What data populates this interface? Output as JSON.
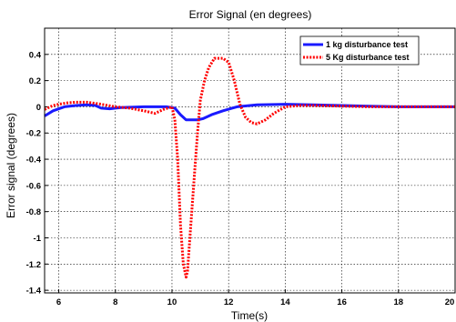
{
  "chart_data": {
    "type": "line",
    "title": "Error Signal (en degrees)",
    "xlabel": "Time(s)",
    "ylabel": "Error signal (degrees)",
    "xlim": [
      5.5,
      20
    ],
    "ylim": [
      -1.42,
      0.6
    ],
    "xticks": [
      6,
      8,
      10,
      12,
      14,
      16,
      18,
      20
    ],
    "xtick_labels": [
      "6",
      "8",
      "10",
      "12",
      "14",
      "16",
      "18",
      "20"
    ],
    "yticks": [
      0.4,
      0.2,
      0,
      -0.2,
      -0.4,
      -0.6,
      -0.8,
      -1,
      -1.2,
      -1.4
    ],
    "ytick_labels": [
      "0.4",
      "0.2",
      "0",
      "-0.2",
      "-0.4",
      "-0.6",
      "-0.8",
      "-1",
      "-1.2",
      "-1.4"
    ],
    "grid": true,
    "legend_position": "top-right",
    "series": [
      {
        "name": "1 kg disturbance test",
        "color": "#1a1aff",
        "style": "solid",
        "x": [
          5.5,
          5.8,
          6.2,
          6.6,
          7.0,
          7.3,
          7.5,
          7.8,
          8.2,
          9.0,
          9.8,
          10.1,
          10.3,
          10.5,
          10.7,
          10.9,
          11.1,
          11.4,
          11.8,
          12.3,
          13.0,
          14.0,
          15.0,
          16.0,
          17.0,
          18.0,
          19.0,
          20.0
        ],
        "y": [
          -0.07,
          -0.03,
          0.0,
          0.01,
          0.015,
          0.01,
          -0.01,
          -0.015,
          -0.005,
          0.0,
          0.0,
          -0.01,
          -0.06,
          -0.1,
          -0.1,
          -0.1,
          -0.09,
          -0.06,
          -0.03,
          0.0,
          0.015,
          0.02,
          0.015,
          0.01,
          0.005,
          0.0,
          0.0,
          0.0
        ]
      },
      {
        "name": "5 Kg disturbance test",
        "color": "#ff0000",
        "style": "dotted",
        "x": [
          5.5,
          5.8,
          6.0,
          6.3,
          6.6,
          7.0,
          7.5,
          8.0,
          8.5,
          9.0,
          9.4,
          9.7,
          10.0,
          10.1,
          10.2,
          10.3,
          10.4,
          10.5,
          10.55,
          10.6,
          10.7,
          10.8,
          10.9,
          11.0,
          11.15,
          11.3,
          11.5,
          11.8,
          12.0,
          12.2,
          12.4,
          12.6,
          12.8,
          13.0,
          13.3,
          13.6,
          14.0,
          14.5,
          15.0,
          16.0,
          17.0,
          18.0,
          19.0,
          20.0
        ],
        "y": [
          -0.02,
          0.01,
          0.02,
          0.03,
          0.035,
          0.035,
          0.02,
          0.0,
          -0.01,
          -0.03,
          -0.05,
          -0.02,
          0.0,
          -0.1,
          -0.4,
          -0.9,
          -1.2,
          -1.3,
          -1.25,
          -1.1,
          -0.8,
          -0.5,
          -0.2,
          0.05,
          0.2,
          0.3,
          0.37,
          0.37,
          0.34,
          0.2,
          0.02,
          -0.08,
          -0.12,
          -0.13,
          -0.1,
          -0.05,
          0.0,
          0.01,
          0.01,
          0.005,
          0.0,
          0.0,
          0.0,
          0.0
        ]
      }
    ]
  }
}
